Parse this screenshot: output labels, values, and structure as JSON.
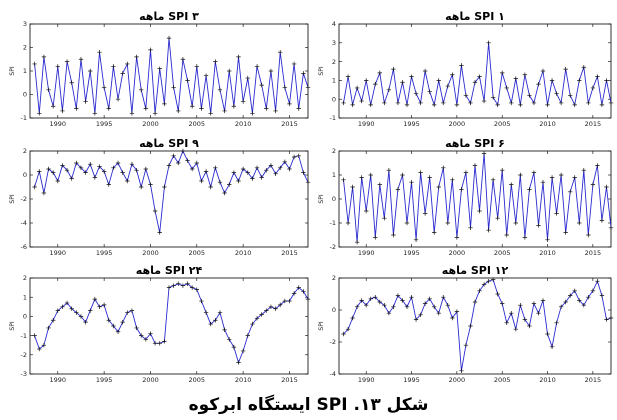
{
  "caption": "شکل ۱۳. SPI ایستگاه ابرکوه",
  "chart_data": [
    {
      "type": "line",
      "title": "SPI ۱ ماهه",
      "ylabel": "SPI",
      "ylim": [
        -1,
        4
      ],
      "yticks": [
        -1,
        0,
        1,
        2,
        3,
        4
      ],
      "xlim": [
        1987,
        2017
      ],
      "xticks": [
        1990,
        1995,
        2000,
        2005,
        2010,
        2015
      ],
      "x": [
        1987.5,
        1988.0,
        1988.5,
        1989.0,
        1989.5,
        1990.0,
        1990.5,
        1991.0,
        1991.5,
        1992.0,
        1992.5,
        1993.0,
        1993.5,
        1994.0,
        1994.5,
        1995.0,
        1995.5,
        1996.0,
        1996.5,
        1997.0,
        1997.5,
        1998.0,
        1998.5,
        1999.0,
        1999.5,
        2000.0,
        2000.5,
        2001.0,
        2001.5,
        2002.0,
        2002.5,
        2003.0,
        2003.5,
        2004.0,
        2004.5,
        2005.0,
        2005.5,
        2006.0,
        2006.5,
        2007.0,
        2007.5,
        2008.0,
        2008.5,
        2009.0,
        2009.5,
        2010.0,
        2010.5,
        2011.0,
        2011.5,
        2012.0,
        2012.5,
        2013.0,
        2013.5,
        2014.0,
        2014.5,
        2015.0,
        2015.5,
        2016.0,
        2016.5,
        2017.0
      ],
      "series": [
        {
          "values": [
            -0.2,
            1.2,
            -0.3,
            0.6,
            -0.1,
            1.0,
            -0.3,
            0.8,
            1.4,
            -0.2,
            0.5,
            1.6,
            -0.2,
            0.9,
            -0.3,
            1.2,
            0.3,
            -0.2,
            1.5,
            0.4,
            -0.3,
            1.0,
            -0.2,
            0.7,
            1.3,
            -0.3,
            1.8,
            0.2,
            -0.2,
            0.9,
            1.2,
            -0.1,
            3.0,
            0.1,
            -0.3,
            1.4,
            0.6,
            -0.2,
            1.1,
            -0.3,
            1.3,
            0.2,
            -0.2,
            0.8,
            1.5,
            -0.3,
            1.0,
            0.3,
            -0.2,
            1.6,
            0.2,
            -0.3,
            1.0,
            1.7,
            -0.2,
            0.6,
            1.2,
            -0.3,
            1.0,
            -0.2
          ]
        }
      ]
    },
    {
      "type": "line",
      "title": "SPI ۳ ماهه",
      "ylabel": "SPI",
      "ylim": [
        -1,
        3
      ],
      "yticks": [
        -1,
        0,
        1,
        2,
        3
      ],
      "xlim": [
        1987,
        2017
      ],
      "xticks": [
        1990,
        1995,
        2000,
        2005,
        2010,
        2015
      ],
      "x": [
        1987.5,
        1988.0,
        1988.5,
        1989.0,
        1989.5,
        1990.0,
        1990.5,
        1991.0,
        1991.5,
        1992.0,
        1992.5,
        1993.0,
        1993.5,
        1994.0,
        1994.5,
        1995.0,
        1995.5,
        1996.0,
        1996.5,
        1997.0,
        1997.5,
        1998.0,
        1998.5,
        1999.0,
        1999.5,
        2000.0,
        2000.5,
        2001.0,
        2001.5,
        2002.0,
        2002.5,
        2003.0,
        2003.5,
        2004.0,
        2004.5,
        2005.0,
        2005.5,
        2006.0,
        2006.5,
        2007.0,
        2007.5,
        2008.0,
        2008.5,
        2009.0,
        2009.5,
        2010.0,
        2010.5,
        2011.0,
        2011.5,
        2012.0,
        2012.5,
        2013.0,
        2013.5,
        2014.0,
        2014.5,
        2015.0,
        2015.5,
        2016.0,
        2016.5,
        2017.0
      ],
      "series": [
        {
          "values": [
            1.3,
            -0.8,
            1.6,
            0.2,
            -0.5,
            1.2,
            -0.7,
            1.4,
            0.5,
            -0.6,
            1.5,
            -0.3,
            1.0,
            -0.8,
            1.8,
            0.3,
            -0.6,
            1.2,
            -0.2,
            0.9,
            1.3,
            -0.8,
            1.6,
            0.2,
            -0.6,
            1.9,
            -0.8,
            1.1,
            -0.4,
            2.4,
            0.3,
            -0.7,
            1.5,
            0.6,
            -0.5,
            1.2,
            -0.6,
            0.8,
            -0.8,
            1.4,
            0.2,
            -0.7,
            1.0,
            -0.5,
            1.6,
            -0.3,
            0.7,
            -0.8,
            1.2,
            0.4,
            -0.6,
            1.0,
            -0.7,
            1.8,
            0.3,
            -0.4,
            1.3,
            -0.6,
            0.9,
            0.3
          ]
        }
      ]
    },
    {
      "type": "line",
      "title": "SPI ۶ ماهه",
      "ylabel": "SPI",
      "ylim": [
        -2,
        2
      ],
      "yticks": [
        -2,
        -1,
        0,
        1,
        2
      ],
      "xlim": [
        1987,
        2017
      ],
      "xticks": [
        1990,
        1995,
        2000,
        2005,
        2010,
        2015
      ],
      "x": [
        1987.5,
        1988.0,
        1988.5,
        1989.0,
        1989.5,
        1990.0,
        1990.5,
        1991.0,
        1991.5,
        1992.0,
        1992.5,
        1993.0,
        1993.5,
        1994.0,
        1994.5,
        1995.0,
        1995.5,
        1996.0,
        1996.5,
        1997.0,
        1997.5,
        1998.0,
        1998.5,
        1999.0,
        1999.5,
        2000.0,
        2000.5,
        2001.0,
        2001.5,
        2002.0,
        2002.5,
        2003.0,
        2003.5,
        2004.0,
        2004.5,
        2005.0,
        2005.5,
        2006.0,
        2006.5,
        2007.0,
        2007.5,
        2008.0,
        2008.5,
        2009.0,
        2009.5,
        2010.0,
        2010.5,
        2011.0,
        2011.5,
        2012.0,
        2012.5,
        2013.0,
        2013.5,
        2014.0,
        2014.5,
        2015.0,
        2015.5,
        2016.0,
        2016.5,
        2017.0
      ],
      "series": [
        {
          "values": [
            0.8,
            -1.0,
            0.5,
            -1.8,
            0.9,
            -0.5,
            1.0,
            -1.6,
            0.6,
            -0.8,
            1.2,
            -1.5,
            0.4,
            1.0,
            -1.0,
            0.7,
            -1.7,
            1.1,
            -0.6,
            0.9,
            -1.4,
            0.5,
            1.3,
            -1.0,
            0.8,
            -1.6,
            0.4,
            1.1,
            -1.2,
            1.4,
            -0.5,
            1.9,
            -1.3,
            0.8,
            -0.8,
            1.2,
            -1.5,
            0.6,
            -1.0,
            1.0,
            -1.6,
            0.4,
            1.1,
            -1.1,
            0.7,
            -1.7,
            0.9,
            -0.6,
            1.0,
            -1.4,
            0.3,
            0.9,
            -1.0,
            1.2,
            -1.5,
            0.6,
            1.4,
            -0.9,
            0.5,
            -1.2
          ]
        }
      ]
    },
    {
      "type": "line",
      "title": "SPI ۹ ماهه",
      "ylabel": "SPI",
      "ylim": [
        -6,
        2
      ],
      "yticks": [
        -6,
        -4,
        -2,
        0,
        2
      ],
      "xlim": [
        1987,
        2017
      ],
      "xticks": [
        1990,
        1995,
        2000,
        2005,
        2010,
        2015
      ],
      "x": [
        1987.5,
        1988.0,
        1988.5,
        1989.0,
        1989.5,
        1990.0,
        1990.5,
        1991.0,
        1991.5,
        1992.0,
        1992.5,
        1993.0,
        1993.5,
        1994.0,
        1994.5,
        1995.0,
        1995.5,
        1996.0,
        1996.5,
        1997.0,
        1997.5,
        1998.0,
        1998.5,
        1999.0,
        1999.5,
        2000.0,
        2000.5,
        2001.0,
        2001.5,
        2002.0,
        2002.5,
        2003.0,
        2003.5,
        2004.0,
        2004.5,
        2005.0,
        2005.5,
        2006.0,
        2006.5,
        2007.0,
        2007.5,
        2008.0,
        2008.5,
        2009.0,
        2009.5,
        2010.0,
        2010.5,
        2011.0,
        2011.5,
        2012.0,
        2012.5,
        2013.0,
        2013.5,
        2014.0,
        2014.5,
        2015.0,
        2015.5,
        2016.0,
        2016.5,
        2017.0
      ],
      "series": [
        {
          "values": [
            -1.0,
            0.3,
            -1.5,
            0.5,
            0.2,
            -0.5,
            0.8,
            0.4,
            -0.3,
            1.0,
            0.6,
            0.2,
            0.9,
            -0.2,
            0.7,
            0.3,
            -0.8,
            0.6,
            1.0,
            0.2,
            -0.5,
            0.9,
            0.4,
            -1.0,
            0.5,
            -0.8,
            -3.0,
            -4.8,
            -1.0,
            0.8,
            1.6,
            1.0,
            2.0,
            1.2,
            0.5,
            1.0,
            -0.5,
            0.3,
            -1.0,
            0.6,
            -0.6,
            -1.5,
            -0.8,
            0.2,
            -0.5,
            0.5,
            0.2,
            -0.3,
            0.6,
            -0.2,
            0.4,
            0.8,
            0.1,
            0.6,
            1.1,
            0.5,
            1.5,
            1.6,
            0.2,
            -0.6
          ]
        }
      ]
    },
    {
      "type": "line",
      "title": "SPI ۱۲ ماهه",
      "ylabel": "SPI",
      "ylim": [
        -4,
        2
      ],
      "yticks": [
        -4,
        -2,
        0,
        2
      ],
      "xlim": [
        1987,
        2017
      ],
      "xticks": [
        1990,
        1995,
        2000,
        2005,
        2010,
        2015
      ],
      "x": [
        1987.5,
        1988.0,
        1988.5,
        1989.0,
        1989.5,
        1990.0,
        1990.5,
        1991.0,
        1991.5,
        1992.0,
        1992.5,
        1993.0,
        1993.5,
        1994.0,
        1994.5,
        1995.0,
        1995.5,
        1996.0,
        1996.5,
        1997.0,
        1997.5,
        1998.0,
        1998.5,
        1999.0,
        1999.5,
        2000.0,
        2000.5,
        2001.0,
        2001.5,
        2002.0,
        2002.5,
        2003.0,
        2003.5,
        2004.0,
        2004.5,
        2005.0,
        2005.5,
        2006.0,
        2006.5,
        2007.0,
        2007.5,
        2008.0,
        2008.5,
        2009.0,
        2009.5,
        2010.0,
        2010.5,
        2011.0,
        2011.5,
        2012.0,
        2012.5,
        2013.0,
        2013.5,
        2014.0,
        2014.5,
        2015.0,
        2015.5,
        2016.0,
        2016.5,
        2017.0
      ],
      "series": [
        {
          "values": [
            -1.5,
            -1.2,
            -0.5,
            0.2,
            0.6,
            0.3,
            0.7,
            0.8,
            0.5,
            0.3,
            -0.2,
            0.2,
            0.9,
            0.6,
            0.2,
            0.8,
            -0.6,
            -0.3,
            0.4,
            0.7,
            0.2,
            -0.2,
            0.8,
            0.3,
            -0.5,
            -0.1,
            -3.8,
            -2.2,
            -1.0,
            0.5,
            1.2,
            1.6,
            1.8,
            1.9,
            1.0,
            0.4,
            -0.8,
            -0.2,
            -1.2,
            0.3,
            -0.6,
            -1.0,
            0.4,
            -0.2,
            0.6,
            -1.5,
            -2.3,
            -0.8,
            0.2,
            0.5,
            0.9,
            1.2,
            0.6,
            0.3,
            0.8,
            1.2,
            1.8,
            0.9,
            -0.6,
            -0.5
          ]
        }
      ]
    },
    {
      "type": "line",
      "title": "SPI ۲۴ ماهه",
      "ylabel": "SPI",
      "ylim": [
        -3,
        2
      ],
      "yticks": [
        -3,
        -2,
        -1,
        0,
        1,
        2
      ],
      "xlim": [
        1987,
        2017
      ],
      "xticks": [
        1990,
        1995,
        2000,
        2005,
        2010,
        2015
      ],
      "x": [
        1987.5,
        1988.0,
        1988.5,
        1989.0,
        1989.5,
        1990.0,
        1990.5,
        1991.0,
        1991.5,
        1992.0,
        1992.5,
        1993.0,
        1993.5,
        1994.0,
        1994.5,
        1995.0,
        1995.5,
        1996.0,
        1996.5,
        1997.0,
        1997.5,
        1998.0,
        1998.5,
        1999.0,
        1999.5,
        2000.0,
        2000.5,
        2001.0,
        2001.5,
        2002.0,
        2002.5,
        2003.0,
        2003.5,
        2004.0,
        2004.5,
        2005.0,
        2005.5,
        2006.0,
        2006.5,
        2007.0,
        2007.5,
        2008.0,
        2008.5,
        2009.0,
        2009.5,
        2010.0,
        2010.5,
        2011.0,
        2011.5,
        2012.0,
        2012.5,
        2013.0,
        2013.5,
        2014.0,
        2014.5,
        2015.0,
        2015.5,
        2016.0,
        2016.5,
        2017.0
      ],
      "series": [
        {
          "values": [
            -1.0,
            -1.7,
            -1.5,
            -0.6,
            -0.2,
            0.3,
            0.5,
            0.7,
            0.4,
            0.2,
            0.0,
            -0.3,
            0.3,
            0.9,
            0.5,
            0.6,
            -0.2,
            -0.5,
            -0.8,
            -0.3,
            0.2,
            0.3,
            -0.6,
            -1.0,
            -1.2,
            -0.9,
            -1.4,
            -1.4,
            -1.3,
            1.5,
            1.6,
            1.7,
            1.6,
            1.7,
            1.5,
            1.4,
            0.8,
            0.2,
            -0.4,
            -0.2,
            0.2,
            -0.7,
            -1.2,
            -1.6,
            -2.4,
            -1.8,
            -1.0,
            -0.4,
            -0.1,
            0.1,
            0.3,
            0.5,
            0.4,
            0.6,
            0.8,
            0.8,
            1.2,
            1.5,
            1.3,
            0.9
          ]
        }
      ]
    }
  ]
}
